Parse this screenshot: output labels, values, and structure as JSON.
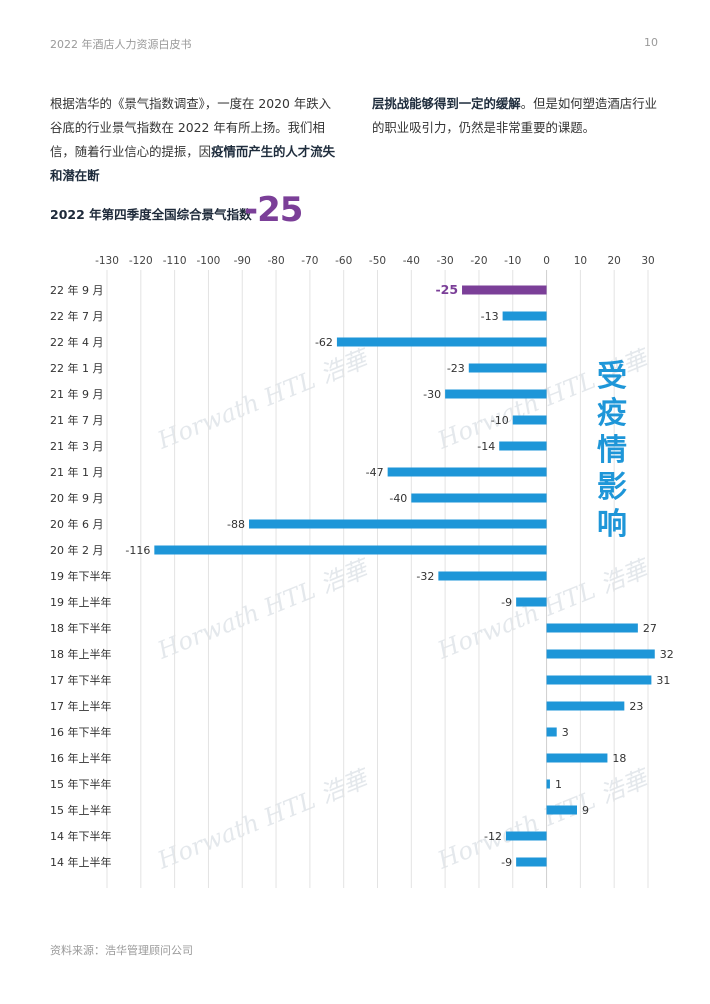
{
  "header": {
    "title": "2022 年酒店人力资源白皮书",
    "page_number": "10"
  },
  "intro": {
    "left_plain": "根据浩华的《景气指数调查》，一度在 2020 年跌入谷底的行业景气指数在 2022 年有所上扬。我们相信，随着行业信心的提振，因",
    "left_bold": "疫情而产生的人才流失和潜在断",
    "right_bold": "层挑战能够得到一定的缓解",
    "right_plain": "。但是如何塑造酒店行业的职业吸引力，仍然是非常重要的课题。"
  },
  "chart_heading": {
    "title": "2022 年第四季度全国综合景气指数",
    "value": "-25"
  },
  "impact_label": [
    "受",
    "疫",
    "情",
    "影",
    "响"
  ],
  "watermark": "Horwath HTL 浩華",
  "source": "资料来源：浩华管理顾问公司",
  "colors": {
    "highlight": "#7b3f98",
    "bar": "#1e96d8",
    "grid": "#e3e3e3"
  },
  "chart_data": {
    "type": "bar",
    "orientation": "horizontal",
    "categories": [
      "22 年 9 月",
      "22 年 7 月",
      "22 年 4 月",
      "22 年 1 月",
      "21 年 9 月",
      "21 年 7 月",
      "21 年 3 月",
      "21 年 1 月",
      "20 年 9 月",
      "20 年 6 月",
      "20 年 2 月",
      "19 年下半年",
      "19 年上半年",
      "18 年下半年",
      "18 年上半年",
      "17 年下半年",
      "17 年上半年",
      "16 年下半年",
      "16 年上半年",
      "15 年下半年",
      "15 年上半年",
      "14 年下半年",
      "14 年上半年"
    ],
    "values": [
      -25,
      -13,
      -62,
      -23,
      -30,
      -10,
      -14,
      -47,
      -40,
      -88,
      -116,
      -32,
      -9,
      27,
      32,
      31,
      23,
      3,
      18,
      1,
      9,
      -12,
      -9
    ],
    "highlight_index": 0,
    "xlim": [
      -130,
      30
    ],
    "xticks": [
      -130,
      -120,
      -110,
      -100,
      -90,
      -80,
      -70,
      -60,
      -50,
      -40,
      -30,
      -20,
      -10,
      0,
      10,
      20,
      30
    ],
    "title": "",
    "grid": true
  }
}
